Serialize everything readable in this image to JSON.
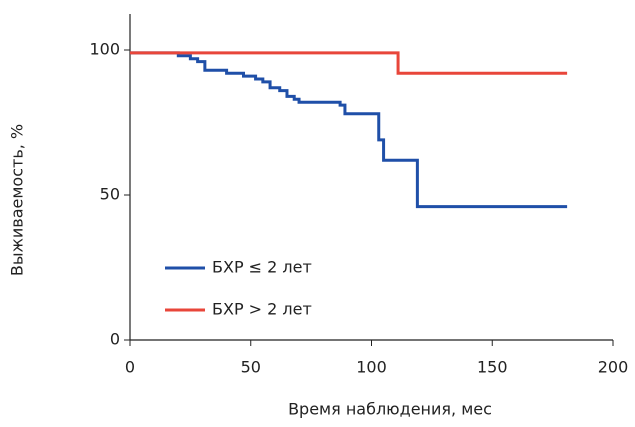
{
  "chart_data": {
    "type": "step",
    "x_label": "Время наблюдения, мес",
    "y_label": "Выживаемость, %",
    "xlim": [
      0,
      200
    ],
    "xticks": [
      0,
      50,
      100,
      150,
      200
    ],
    "ylim": [
      0,
      110
    ],
    "yticks": [
      0,
      50,
      100
    ],
    "legend": "lower left",
    "series": [
      {
        "name": "БХР ≤ 2 лет",
        "color": "#1f4fa8",
        "x": [
          0,
          20,
          25,
          28,
          31,
          40,
          47,
          52,
          55,
          58,
          62,
          65,
          68,
          70,
          87,
          89,
          103,
          105,
          119,
          181
        ],
        "values": [
          99,
          98,
          97,
          96,
          93,
          92,
          91,
          90,
          89,
          87,
          86,
          84,
          83,
          82,
          81,
          78,
          69,
          62,
          46,
          46
        ]
      },
      {
        "name": "БХР > 2 лет",
        "color": "#e8463a",
        "x": [
          0,
          111,
          181
        ],
        "values": [
          99,
          92,
          92
        ]
      }
    ]
  }
}
